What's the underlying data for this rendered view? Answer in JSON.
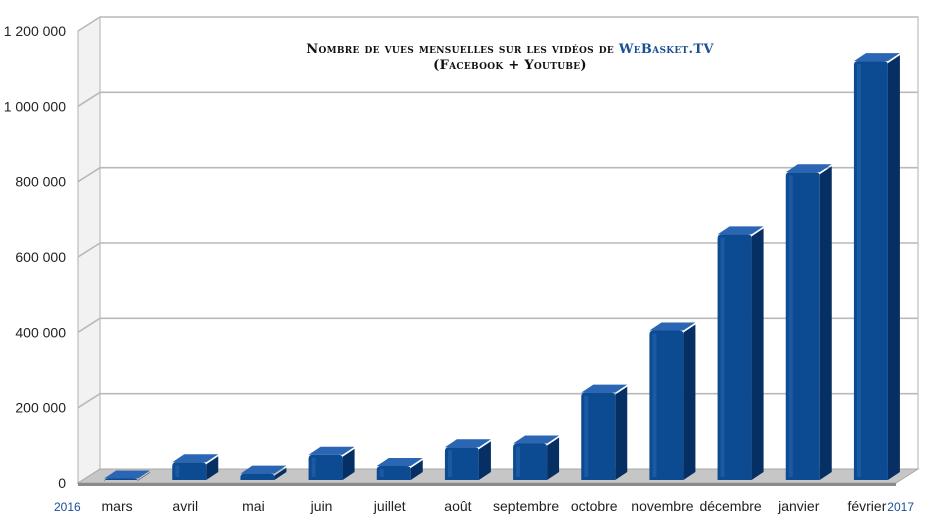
{
  "chart_data": {
    "type": "bar",
    "title": "Nombre de vues mensuelles sur les vidéos de",
    "title_brand": "WeBasket.TV",
    "subtitle": "(Facebook + Youtube)",
    "categories": [
      "mars",
      "avril",
      "mai",
      "juin",
      "juillet",
      "août",
      "septembre",
      "octobre",
      "novembre",
      "décembre",
      "janvier",
      "février"
    ],
    "values": [
      12000,
      55000,
      25000,
      75000,
      45000,
      95000,
      105000,
      240000,
      405000,
      660000,
      825000,
      1120000
    ],
    "y_ticks": [
      "0",
      "200 000",
      "400 000",
      "600 000",
      "800 000",
      "1 000 000",
      "1 200 000"
    ],
    "ylim": [
      0,
      1200000
    ],
    "year_start": "2016",
    "year_end": "2017",
    "grid": true,
    "style": "3d-bar",
    "colors": {
      "bar_front": "#0c4a91",
      "bar_side": "#062f63",
      "bar_top": "#2a66b4",
      "grid": "#b9b9b9",
      "floor": "#c6c6c6",
      "brand": "#1a4f96"
    }
  }
}
